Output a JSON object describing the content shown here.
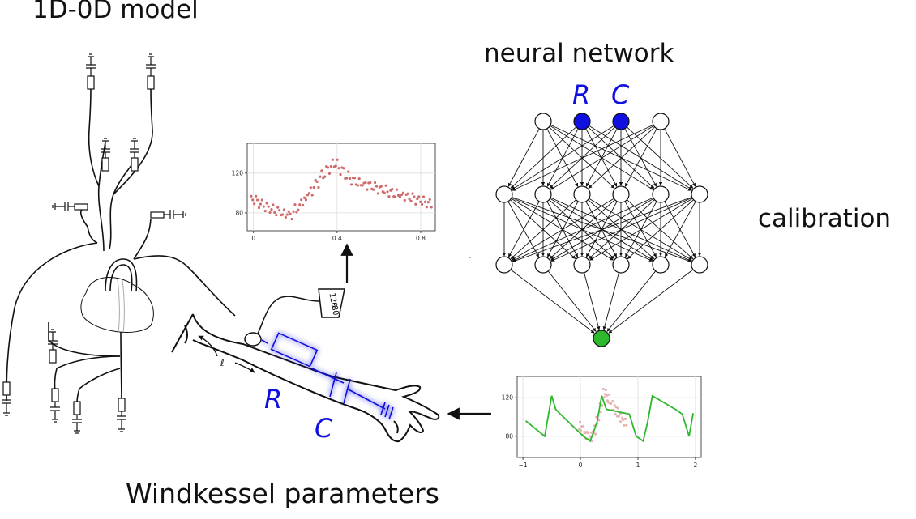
{
  "labels": {
    "model_title": "1D-0D model",
    "nn_title": "neural network",
    "calibration": "calibration",
    "windkessel": "Windkessel parameters",
    "R": "R",
    "C": "C"
  },
  "gauge": {
    "line1": "120",
    "line2": "80"
  },
  "colors": {
    "blue": "#1010e0",
    "green": "#2eb82e",
    "scatter": "#d06a6a",
    "scatter_light": "#e6b0b0",
    "line": "#111111"
  },
  "network": {
    "layers": [
      4,
      6,
      6,
      1
    ],
    "highlighted_inputs": [
      1,
      2
    ]
  },
  "chart_data": [
    {
      "type": "scatter",
      "title": "",
      "xlabel": "",
      "ylabel": "",
      "xlim": [
        -0.03,
        0.87
      ],
      "ylim": [
        62,
        150
      ],
      "xticks": [
        0.0,
        0.4,
        0.8
      ],
      "yticks": [
        80,
        120
      ],
      "grid": true,
      "series": [
        {
          "x": [
            0.0,
            0.03,
            0.06,
            0.09,
            0.12,
            0.15,
            0.18,
            0.21,
            0.24,
            0.27,
            0.3,
            0.33,
            0.36,
            0.39,
            0.42,
            0.45,
            0.48,
            0.51,
            0.54,
            0.57,
            0.6,
            0.63,
            0.66,
            0.69,
            0.72,
            0.75,
            0.78,
            0.81,
            0.84
          ],
          "y": [
            93,
            89,
            86,
            84,
            82,
            79,
            78,
            84,
            92,
            101,
            110,
            118,
            124,
            129,
            123,
            117,
            113,
            110,
            108,
            106,
            104,
            103,
            101,
            99,
            97,
            95,
            93,
            92,
            90
          ]
        }
      ]
    },
    {
      "type": "line",
      "title": "",
      "xlabel": "",
      "ylabel": "",
      "xlim": [
        -1.1,
        2.1
      ],
      "ylim": [
        58,
        142
      ],
      "xticks": [
        -1.0,
        0.0,
        1.0,
        2.0
      ],
      "yticks": [
        80,
        120
      ],
      "grid": true,
      "series": [
        {
          "x": [
            -0.95,
            -0.62,
            -0.5,
            -0.43,
            -0.35,
            0.05,
            0.17,
            0.29,
            0.37,
            0.45,
            0.85,
            0.97,
            1.09,
            1.17,
            1.25,
            1.65,
            1.77,
            1.89,
            1.96
          ],
          "y": [
            96,
            80,
            122,
            108,
            103,
            80,
            75,
            95,
            122,
            108,
            103,
            80,
            75,
            95,
            122,
            108,
            103,
            80,
            104
          ]
        },
        {
          "x": [
            0.0,
            0.06,
            0.12,
            0.18,
            0.24,
            0.3,
            0.36,
            0.42,
            0.48,
            0.54,
            0.6,
            0.66,
            0.72,
            0.78
          ],
          "y": [
            90,
            86,
            82,
            80,
            86,
            98,
            110,
            124,
            118,
            112,
            108,
            104,
            100,
            96
          ]
        }
      ]
    }
  ]
}
